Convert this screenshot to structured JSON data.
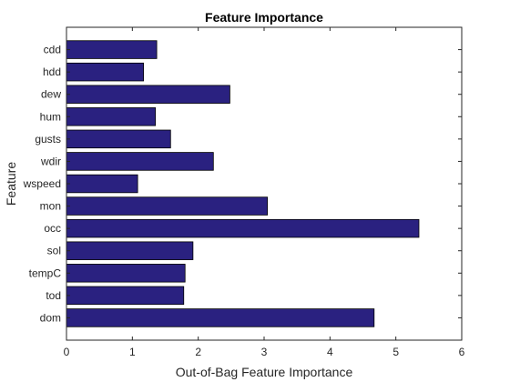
{
  "chart_data": {
    "type": "bar",
    "orientation": "horizontal",
    "title": "Feature Importance",
    "xlabel": "Out-of-Bag Feature Importance",
    "ylabel": "Feature",
    "categories": [
      "cdd",
      "hdd",
      "dew",
      "hum",
      "gusts",
      "wdir",
      "wspeed",
      "mon",
      "occ",
      "sol",
      "tempC",
      "tod",
      "dom"
    ],
    "values": [
      1.37,
      1.17,
      2.48,
      1.35,
      1.58,
      2.23,
      1.08,
      3.05,
      5.35,
      1.92,
      1.8,
      1.78,
      4.67
    ],
    "xlim": [
      0,
      6
    ],
    "xticks": [
      0,
      1,
      2,
      3,
      4,
      5,
      6
    ],
    "grid": false,
    "legend": "none",
    "colors": {
      "bar_fill": "#2a2180",
      "bar_edge": "#000000",
      "axis": "#262626"
    }
  }
}
